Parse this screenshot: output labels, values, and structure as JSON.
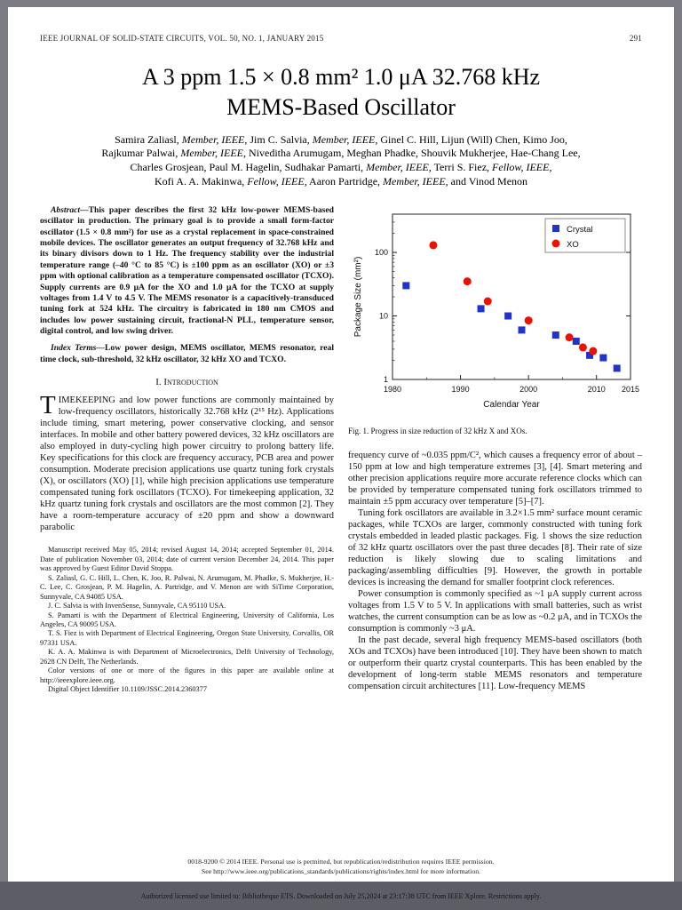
{
  "journal": {
    "header": "IEEE JOURNAL OF SOLID-STATE CIRCUITS, VOL. 50, NO. 1, JANUARY 2015",
    "page_number": "291"
  },
  "title": {
    "line1": "A 3 ppm 1.5 × 0.8 mm² 1.0 μA 32.768 kHz",
    "line2": "MEMS-Based Oscillator"
  },
  "authors": {
    "lines": [
      [
        {
          "text": "Samira Zaliasl, "
        },
        {
          "text": "Member, IEEE,",
          "italic": true
        },
        {
          "text": " Jim C. Salvia, "
        },
        {
          "text": "Member, IEEE,",
          "italic": true
        },
        {
          "text": " Ginel C. Hill, Lijun (Will) Chen, Kimo Joo,"
        }
      ],
      [
        {
          "text": "Rajkumar Palwai, "
        },
        {
          "text": "Member, IEEE,",
          "italic": true
        },
        {
          "text": " Niveditha Arumugam, Meghan Phadke, Shouvik Mukherjee, Hae-Chang Lee,"
        }
      ],
      [
        {
          "text": "Charles Grosjean, Paul M. Hagelin, Sudhakar Pamarti, "
        },
        {
          "text": "Member, IEEE,",
          "italic": true
        },
        {
          "text": " Terri S. Fiez, "
        },
        {
          "text": "Fellow, IEEE,",
          "italic": true
        }
      ],
      [
        {
          "text": "Kofi A. A. Makinwa, "
        },
        {
          "text": "Fellow, IEEE,",
          "italic": true
        },
        {
          "text": " Aaron Partridge, "
        },
        {
          "text": "Member, IEEE,",
          "italic": true
        },
        {
          "text": " and Vinod Menon"
        }
      ]
    ]
  },
  "abstract": {
    "lead": "Abstract—",
    "text": "This paper describes the first 32 kHz low-power MEMS-based oscillator in production. The primary goal is to provide a small form-factor oscillator (1.5 × 0.8 mm²) for use as a crystal replacement in space-constrained mobile devices. The oscillator generates an output frequency of 32.768 kHz and its binary divisors down to 1 Hz. The frequency stability over the industrial temperature range (–40 °C to 85 °C) is ±100 ppm as an oscillator (XO) or ±3 ppm with optional calibration as a temperature compensated oscillator (TCXO). Supply currents are 0.9 μA for the XO and 1.0 μA for the TCXO at supply voltages from 1.4 V to 4.5 V. The MEMS resonator is a capacitively-transduced tuning fork at 524 kHz. The circuitry is fabricated in 180 nm CMOS and includes low power sustaining circuit, fractional-N PLL, temperature sensor, digital control, and low swing driver."
  },
  "index_terms": {
    "lead": "Index Terms—",
    "text": "Low power design, MEMS oscillator, MEMS resonator, real time clock, sub-threshold, 32 kHz oscillator, 32 kHz XO and TCXO."
  },
  "introduction": {
    "heading": "I. Introduction",
    "dropcap": "T",
    "lead": "IMEKEEPING",
    "text": " and low power functions are commonly maintained by low-frequency oscillators, historically 32.768 kHz (2¹⁵ Hz). Applications include timing, smart metering, power conservative clocking, and sensor interfaces. In mobile and other battery powered devices, 32 kHz oscillators are also employed in duty-cycling high power circuitry to prolong battery life. Key specifications for this clock are frequency accuracy, PCB area and power consumption. Moderate precision applications use quartz tuning fork crystals (X), or oscillators (XO) [1], while high precision applications use temperature compensated tuning fork oscillators (TCXO). For timekeeping application, 32 kHz quartz tuning fork crystals and oscillators are the most common [2]. They have a room-temperature accuracy of ±20 ppm and show a downward parabolic"
  },
  "footnotes": {
    "paragraphs": [
      "Manuscript received May 05, 2014; revised August 14, 2014; accepted September 01, 2014. Date of publication November 03, 2014; date of current version December 24, 2014. This paper was approved by Guest Editor David Stoppa.",
      "S. Zaliasl, G. C. Hill, L. Chen, K. Joo, R. Palwai, N. Arumugam, M. Phadke, S. Mukherjee, H.-C. Lee, C. Grosjean, P. M. Hagelin, A. Partridge, and V. Menon are with SiTime Corporation, Sunnyvale, CA 94085 USA.",
      "J. C. Salvia is with InvenSense, Sunnyvale, CA 95110 USA.",
      "S. Pamarti is with the Department of Electrical Engineering, University of California, Los Angeles, CA 90095 USA.",
      "T. S. Fiez is with Department of Electrical Engineering, Oregon State University, Corvallis, OR 97331 USA.",
      "K. A. A. Makinwa is with Department of Microelectronics, Delft University of Technology, 2628 CN Delft, The Netherlands.",
      "Color versions of one or more of the figures in this paper are available online at http://ieeexplore.ieee.org.",
      "Digital Object Identifier 10.1109/JSSC.2014.2360377"
    ]
  },
  "figure1": {
    "caption": "Fig. 1.   Progress in size reduction of 32 kHz X and XOs."
  },
  "column2": {
    "paragraphs": [
      "frequency curve of ~0.035 ppm/C², which causes a frequency error of about –150 ppm at low and high temperature extremes [3], [4]. Smart metering and other precision applications require more accurate reference clocks which can be provided by temperature compensated tuning fork oscillators trimmed to maintain ±5 ppm accuracy over temperature [5]–[7].",
      "Tuning fork oscillators are available in 3.2×1.5 mm² surface mount ceramic packages, while TCXOs are larger, commonly constructed with tuning fork crystals embedded in leaded plastic packages. Fig. 1 shows the size reduction of 32 kHz quartz oscillators over the past three decades [8]. Their rate of size reduction is likely slowing due to scaling limitations and packaging/assembling difficulties [9]. However, the growth in portable devices is increasing the demand for smaller footprint clock references.",
      "Power consumption is commonly specified as ~1 μA supply current across voltages from 1.5 V to 5 V. In applications with small batteries, such as wrist watches, the current consumption can be as low as ~0.2 μA, and in TCXOs the consumption is commonly ~3 μA.",
      "In the past decade, several high frequency MEMS-based oscillators (both XOs and TCXOs) have been introduced [10]. They have been shown to match or outperform their quartz crystal counterparts. This has been enabled by the development of long-term stable MEMS resonators and temperature compensation circuit architectures [11]. Low-frequency MEMS"
    ]
  },
  "footer": {
    "copyright": "0018-9200 © 2014 IEEE. Personal use is permitted, but republication/redistribution requires IEEE permission.",
    "rights": "See http://www.ieee.org/publications_standards/publications/rights/index.html for more information.",
    "license": "Authorized licensed use limited to: Bibliotheque ETS. Downloaded on July 25,2024 at 23:17:38 UTC from IEEE Xplore. Restrictions apply."
  },
  "chart_data": {
    "type": "scatter",
    "title": "",
    "xlabel": "Calendar Year",
    "ylabel": "Package Size (mm²)",
    "xlim": [
      1980,
      2015
    ],
    "ylim": [
      1,
      400
    ],
    "y_scale": "log",
    "x_ticks": [
      1980,
      1990,
      2000,
      2010,
      2015
    ],
    "y_ticks": [
      1,
      10,
      100
    ],
    "legend_position": "top-right",
    "grid": false,
    "series": [
      {
        "name": "Crystal",
        "marker": "square",
        "color": "#2233cc",
        "points": [
          [
            1982,
            30
          ],
          [
            1993,
            13
          ],
          [
            1997,
            10
          ],
          [
            1999,
            6
          ],
          [
            2004,
            5
          ],
          [
            2007,
            4
          ],
          [
            2009,
            2.4
          ],
          [
            2011,
            2.2
          ],
          [
            2013,
            1.5
          ]
        ]
      },
      {
        "name": "XO",
        "marker": "circle",
        "color": "#ee1100",
        "points": [
          [
            1986,
            130
          ],
          [
            1991,
            35
          ],
          [
            1994,
            17
          ],
          [
            2000,
            8.5
          ],
          [
            2006,
            4.6
          ],
          [
            2008,
            3.2
          ],
          [
            2009.5,
            2.8
          ]
        ]
      }
    ]
  }
}
